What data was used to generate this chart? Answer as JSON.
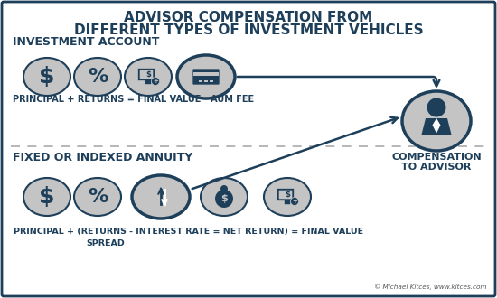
{
  "title_line1": "ADVISOR COMPENSATION FROM",
  "title_line2": "DIFFERENT TYPES OF INVESTMENT VEHICLES",
  "section1_label": "INVESTMENT ACCOUNT",
  "section1_formula": "PRINCIPAL + RETURNS = FINAL VALUE - AUM FEE",
  "section2_label": "FIXED OR INDEXED ANNUITY",
  "section2_formula_line1": "PRINCIPAL + (RETURNS - INTEREST RATE = NET RETURN) = FINAL VALUE",
  "section2_formula_line2": "SPREAD",
  "advisor_label_line1": "COMPENSATION",
  "advisor_label_line2": "TO ADVISOR",
  "copyright": "© Michael Kitces, www.kitces.com",
  "bg_color": "#ffffff",
  "border_color": "#1e3f5a",
  "title_color": "#1e3f5a",
  "section_label_color": "#1e3f5a",
  "formula_color": "#1e3f5a",
  "oval_fill_normal": "#c4c4c4",
  "oval_stroke": "#1e3f5a",
  "icon_color_normal": "#1e3f5a",
  "icon_color_highlight": "#ffffff",
  "arrow_color": "#1e3f5a",
  "dashed_line_color": "#aaaaaa"
}
